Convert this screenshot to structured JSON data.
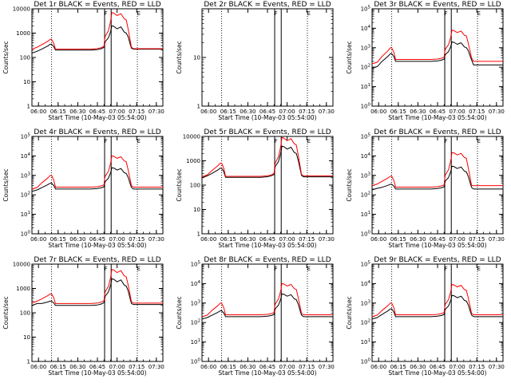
{
  "figure": {
    "title_template": "Det {det} BLACK = Events, RED = LLD",
    "xlabel": "Start Time (10-May-03 05:54:00)",
    "ylabel": "Counts/sec"
  },
  "chart_data": {
    "type": "line",
    "grid": "3x3",
    "x_unit": "seconds since 06:00",
    "x_range": [
      -300,
      5700
    ],
    "x_ticks": [
      {
        "v": 0,
        "label": "06:00"
      },
      {
        "v": 900,
        "label": "06:15"
      },
      {
        "v": 1800,
        "label": "06:30"
      },
      {
        "v": 2700,
        "label": "06:45"
      },
      {
        "v": 3600,
        "label": "07:00"
      },
      {
        "v": 4500,
        "label": "07:15"
      },
      {
        "v": 5400,
        "label": "07:30"
      }
    ],
    "markers": {
      "dotted": [
        600,
        4530
      ],
      "solid": [
        3030,
        3330
      ],
      "tick_labels": [
        {
          "v": 3090,
          "label": "F"
        },
        {
          "v": 4590,
          "label": "E"
        }
      ]
    },
    "series_legend": {
      "black": "Events",
      "red": "LLD"
    },
    "panels": [
      {
        "det": "1r",
        "empty": false,
        "ylim": [
          1,
          10000
        ],
        "yticks": [
          {
            "v": 1,
            "label": "1"
          },
          {
            "v": 10,
            "label": "10"
          },
          {
            "v": 100,
            "label": "100"
          },
          {
            "v": 1000,
            "label": "1000"
          },
          {
            "v": 10000,
            "label": "10000"
          }
        ],
        "events": {
          "base": 200,
          "peak1": 350,
          "flare": 2000,
          "start": 150,
          "end": 220
        },
        "lld": {
          "base": 220,
          "peak1": 550,
          "flare": 7000,
          "start": 220,
          "end": 230
        }
      },
      {
        "det": "2r",
        "empty": true,
        "ylim": [
          1,
          100
        ],
        "yticks": [
          {
            "v": 1,
            "label": "1"
          },
          {
            "v": 10,
            "label": "10"
          }
        ],
        "events": null,
        "lld": null
      },
      {
        "det": "3r",
        "empty": false,
        "ylim": [
          1,
          100000
        ],
        "yticks": [
          {
            "v": 1,
            "label": "10^0"
          },
          {
            "v": 10,
            "label": "10^1"
          },
          {
            "v": 100,
            "label": "10^2"
          },
          {
            "v": 1000,
            "label": "10^3"
          },
          {
            "v": 10000,
            "label": "10^4"
          },
          {
            "v": 100000,
            "label": "10^5"
          }
        ],
        "events": {
          "base": 200,
          "peak1": 500,
          "flare": 2000,
          "start": 90,
          "end": 130
        },
        "lld": {
          "base": 250,
          "peak1": 1000,
          "flare": 8000,
          "start": 150,
          "end": 200
        }
      },
      {
        "det": "4r",
        "empty": false,
        "ylim": [
          1,
          100000
        ],
        "yticks": [
          {
            "v": 1,
            "label": "10^0"
          },
          {
            "v": 10,
            "label": "10^1"
          },
          {
            "v": 100,
            "label": "10^2"
          },
          {
            "v": 1000,
            "label": "10^3"
          },
          {
            "v": 10000,
            "label": "10^4"
          },
          {
            "v": 100000,
            "label": "10^5"
          }
        ],
        "events": {
          "base": 200,
          "peak1": 400,
          "flare": 2500,
          "start": 150,
          "end": 200
        },
        "lld": {
          "base": 250,
          "peak1": 1000,
          "flare": 10000,
          "start": 200,
          "end": 250
        }
      },
      {
        "det": "5r",
        "empty": false,
        "ylim": [
          1,
          10000
        ],
        "yticks": [
          {
            "v": 1,
            "label": "1"
          },
          {
            "v": 10,
            "label": "10"
          },
          {
            "v": 100,
            "label": "100"
          },
          {
            "v": 1000,
            "label": "1000"
          },
          {
            "v": 10000,
            "label": "10000"
          }
        ],
        "events": {
          "base": 210,
          "peak1": 500,
          "flare": 4000,
          "start": 200,
          "end": 220
        },
        "lld": {
          "base": 230,
          "peak1": 800,
          "flare": 9000,
          "start": 220,
          "end": 240
        }
      },
      {
        "det": "6r",
        "empty": false,
        "ylim": [
          1,
          100000
        ],
        "yticks": [
          {
            "v": 1,
            "label": "10^0"
          },
          {
            "v": 10,
            "label": "10^1"
          },
          {
            "v": 100,
            "label": "10^2"
          },
          {
            "v": 1000,
            "label": "10^3"
          },
          {
            "v": 10000,
            "label": "10^4"
          },
          {
            "v": 100000,
            "label": "10^5"
          }
        ],
        "events": {
          "base": 200,
          "peak1": 350,
          "flare": 3000,
          "start": 180,
          "end": 200
        },
        "lld": {
          "base": 250,
          "peak1": 900,
          "flare": 15000,
          "start": 300,
          "end": 300
        }
      },
      {
        "det": "7r",
        "empty": false,
        "ylim": [
          1,
          10000
        ],
        "yticks": [
          {
            "v": 1,
            "label": "1"
          },
          {
            "v": 10,
            "label": "10"
          },
          {
            "v": 100,
            "label": "100"
          },
          {
            "v": 1000,
            "label": "1000"
          },
          {
            "v": 10000,
            "label": "10000"
          }
        ],
        "events": {
          "base": 200,
          "peak1": 300,
          "flare": 2500,
          "start": 200,
          "end": 220
        },
        "lld": {
          "base": 240,
          "peak1": 600,
          "flare": 6000,
          "start": 250,
          "end": 250
        }
      },
      {
        "det": "8r",
        "empty": false,
        "ylim": [
          1,
          100000
        ],
        "yticks": [
          {
            "v": 1,
            "label": "10^0"
          },
          {
            "v": 10,
            "label": "10^1"
          },
          {
            "v": 100,
            "label": "10^2"
          },
          {
            "v": 1000,
            "label": "10^3"
          },
          {
            "v": 10000,
            "label": "10^4"
          },
          {
            "v": 100000,
            "label": "10^5"
          }
        ],
        "events": {
          "base": 200,
          "peak1": 400,
          "flare": 3000,
          "start": 150,
          "end": 200
        },
        "lld": {
          "base": 250,
          "peak1": 1000,
          "flare": 10000,
          "start": 200,
          "end": 250
        }
      },
      {
        "det": "9r",
        "empty": false,
        "ylim": [
          1,
          100000
        ],
        "yticks": [
          {
            "v": 1,
            "label": "10^0"
          },
          {
            "v": 10,
            "label": "10^1"
          },
          {
            "v": 100,
            "label": "10^2"
          },
          {
            "v": 1000,
            "label": "10^3"
          },
          {
            "v": 10000,
            "label": "10^4"
          },
          {
            "v": 100000,
            "label": "10^5"
          }
        ],
        "events": {
          "base": 200,
          "peak1": 500,
          "flare": 2500,
          "start": 150,
          "end": 200
        },
        "lld": {
          "base": 250,
          "peak1": 1000,
          "flare": 9000,
          "start": 200,
          "end": 250
        }
      }
    ]
  },
  "colors": {
    "events": "#000000",
    "lld": "#ff0000",
    "axes": "#000000",
    "background": "#ffffff"
  }
}
